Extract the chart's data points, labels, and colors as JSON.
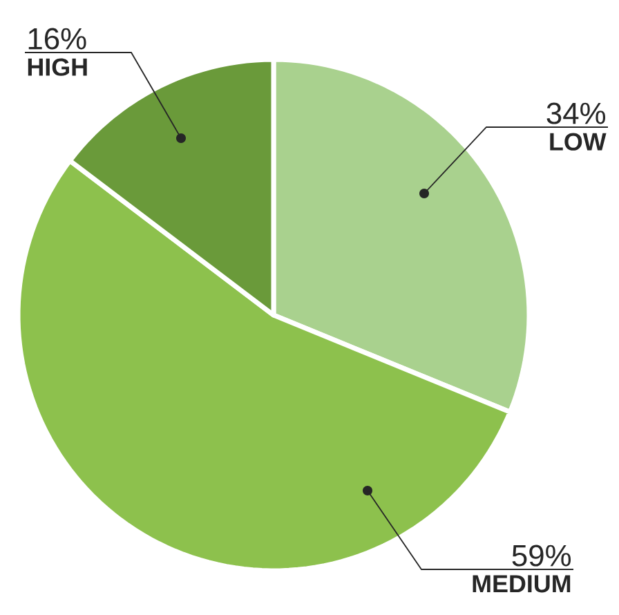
{
  "chart_data": {
    "type": "pie",
    "categories": [
      "LOW",
      "MEDIUM",
      "HIGH"
    ],
    "values": [
      34,
      59,
      16
    ],
    "colors": [
      "#a9d18e",
      "#8dc14d",
      "#6a9a3a"
    ],
    "value_labels": [
      "34%",
      "59%",
      "16%"
    ]
  }
}
